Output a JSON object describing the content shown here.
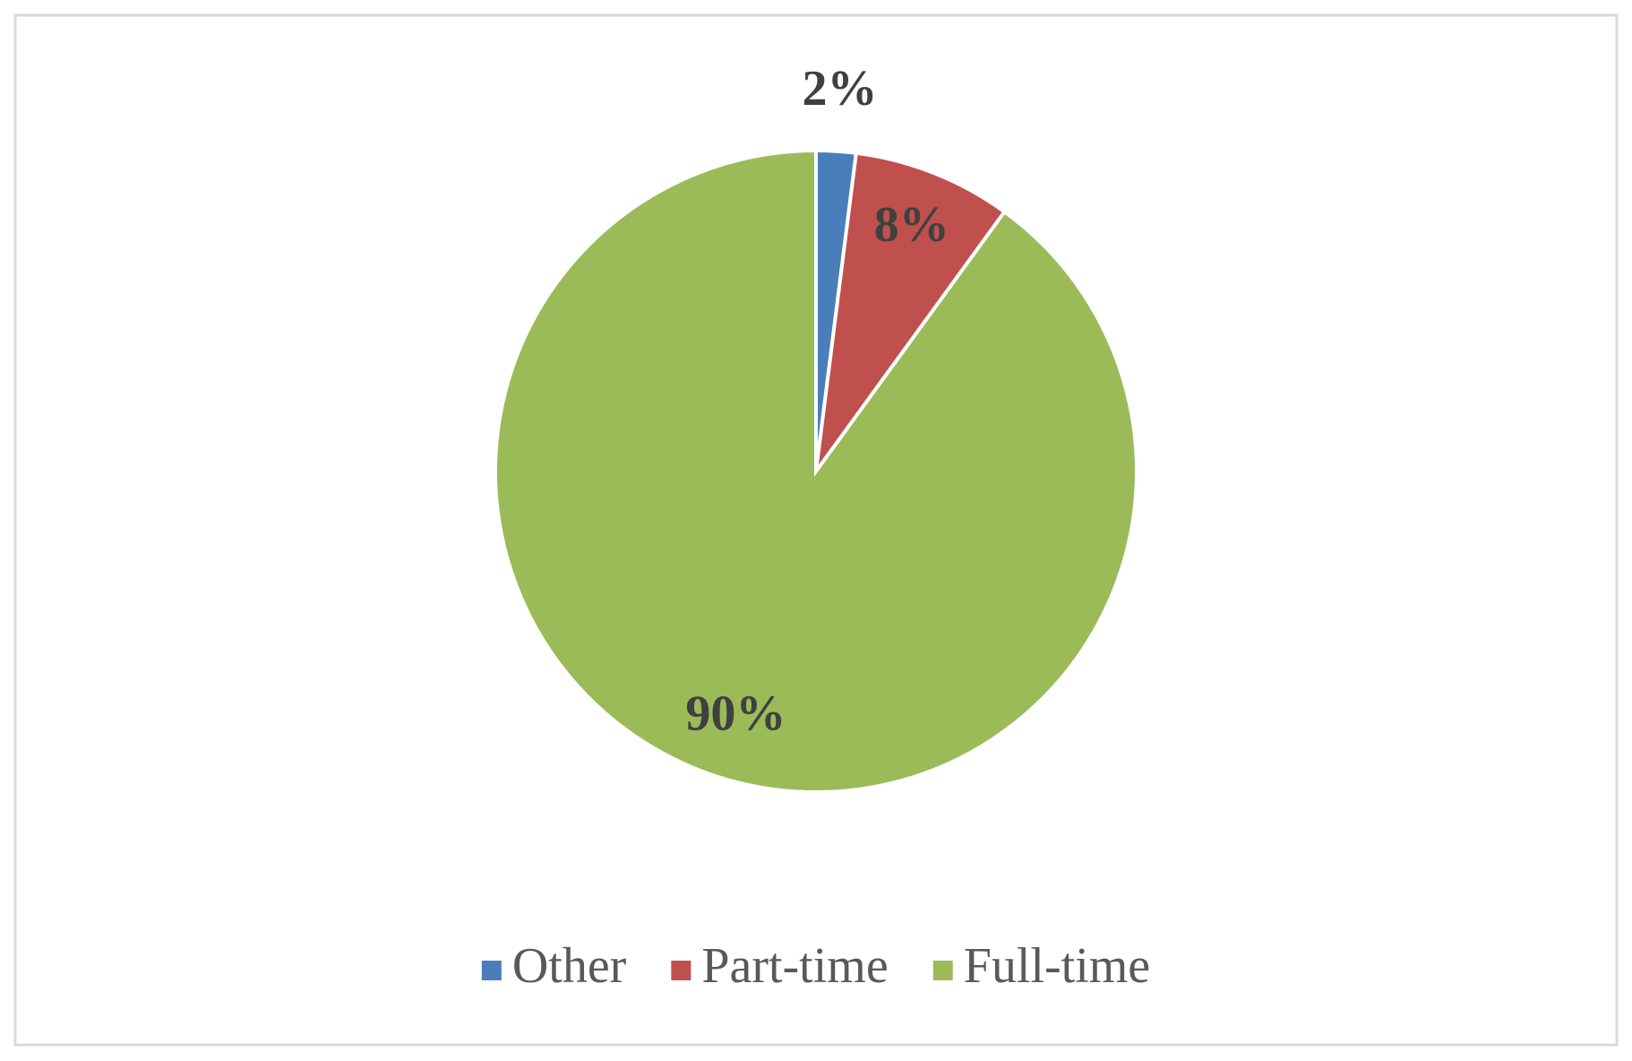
{
  "chart_data": {
    "type": "pie",
    "categories": [
      "Other",
      "Part-time",
      "Full-time"
    ],
    "values": [
      2,
      8,
      90
    ],
    "value_labels": [
      "2%",
      "8%",
      "90%"
    ],
    "colors": [
      "#4a7ebb",
      "#c0504d",
      "#9bbb59"
    ],
    "legend": "bottom"
  }
}
